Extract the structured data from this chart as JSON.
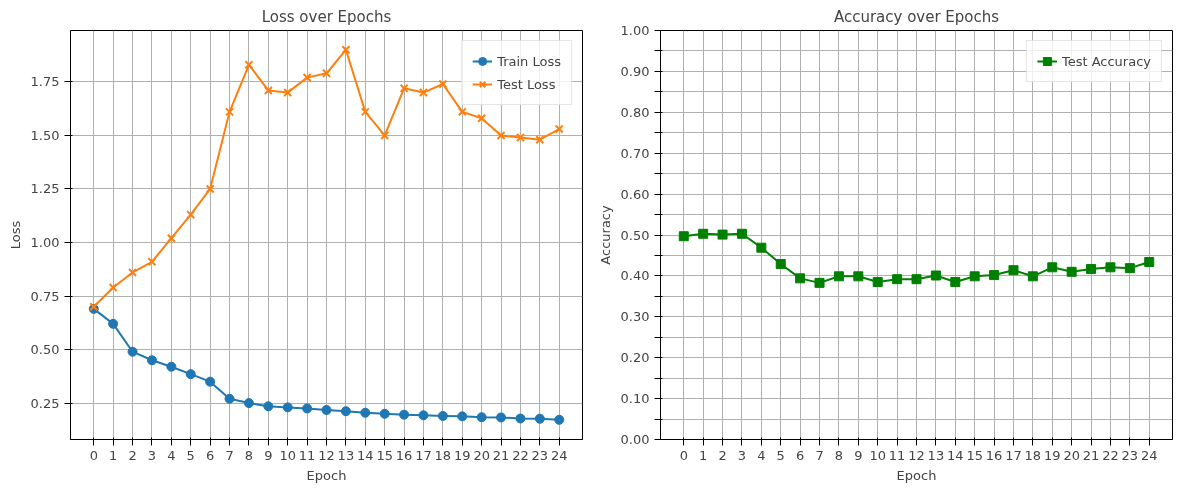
{
  "chart_data": [
    {
      "type": "line",
      "title": "Loss over Epochs",
      "xlabel": "Epoch",
      "ylabel": "Loss",
      "grid": true,
      "legend": "top right",
      "x": [
        0,
        1,
        2,
        3,
        4,
        5,
        6,
        7,
        8,
        9,
        10,
        11,
        12,
        13,
        14,
        15,
        16,
        17,
        18,
        19,
        20,
        21,
        22,
        23,
        24
      ],
      "xlim": [
        -1.2,
        25.2
      ],
      "ylim": [
        0.08,
        1.99
      ],
      "xticks": [
        0,
        1,
        2,
        3,
        4,
        5,
        6,
        7,
        8,
        9,
        10,
        11,
        12,
        13,
        14,
        15,
        16,
        17,
        18,
        19,
        20,
        21,
        22,
        23,
        24
      ],
      "yticks": [
        {
          "value": 0.25,
          "label": "0.25"
        },
        {
          "value": 0.5,
          "label": "0.50"
        },
        {
          "value": 0.75,
          "label": "0.75"
        },
        {
          "value": 1.0,
          "label": "1.00"
        },
        {
          "value": 1.25,
          "label": "1.25"
        },
        {
          "value": 1.5,
          "label": "1.50"
        },
        {
          "value": 1.75,
          "label": "1.75"
        }
      ],
      "series": [
        {
          "name": "Train Loss",
          "color": "#1f77b4",
          "marker": "circle",
          "values": [
            0.69,
            0.62,
            0.49,
            0.45,
            0.42,
            0.385,
            0.35,
            0.27,
            0.25,
            0.235,
            0.23,
            0.225,
            0.218,
            0.212,
            0.205,
            0.2,
            0.196,
            0.193,
            0.19,
            0.188,
            0.184,
            0.183,
            0.178,
            0.177,
            0.172
          ]
        },
        {
          "name": "Test Loss",
          "color": "#ff7f0e",
          "marker": "cross",
          "values": [
            0.7,
            0.79,
            0.86,
            0.91,
            1.02,
            1.13,
            1.25,
            1.61,
            1.83,
            1.71,
            1.7,
            1.77,
            1.79,
            1.9,
            1.61,
            1.5,
            1.72,
            1.7,
            1.74,
            1.61,
            1.58,
            1.5,
            1.49,
            1.48,
            1.53
          ]
        }
      ]
    },
    {
      "type": "line",
      "title": "Accuracy over Epochs",
      "xlabel": "Epoch",
      "ylabel": "Accuracy",
      "grid": true,
      "legend": "top right",
      "x": [
        0,
        1,
        2,
        3,
        4,
        5,
        6,
        7,
        8,
        9,
        10,
        11,
        12,
        13,
        14,
        15,
        16,
        17,
        18,
        19,
        20,
        21,
        22,
        23,
        24
      ],
      "xlim": [
        -1.2,
        25.2
      ],
      "ylim": [
        0,
        1
      ],
      "xticks": [
        0,
        1,
        2,
        3,
        4,
        5,
        6,
        7,
        8,
        9,
        10,
        11,
        12,
        13,
        14,
        15,
        16,
        17,
        18,
        19,
        20,
        21,
        22,
        23,
        24
      ],
      "yticks": [
        {
          "value": 0,
          "label": "0.00"
        },
        {
          "value": 0.05,
          "label": null
        },
        {
          "value": 0.1,
          "label": "0.10"
        },
        {
          "value": 0.15,
          "label": null
        },
        {
          "value": 0.2,
          "label": "0.20"
        },
        {
          "value": 0.25,
          "label": null
        },
        {
          "value": 0.3,
          "label": "0.30"
        },
        {
          "value": 0.35,
          "label": null
        },
        {
          "value": 0.4,
          "label": "0.40"
        },
        {
          "value": 0.45,
          "label": null
        },
        {
          "value": 0.5,
          "label": "0.50"
        },
        {
          "value": 0.55,
          "label": null
        },
        {
          "value": 0.6,
          "label": "0.60"
        },
        {
          "value": 0.65,
          "label": null
        },
        {
          "value": 0.7,
          "label": "0.70"
        },
        {
          "value": 0.75,
          "label": null
        },
        {
          "value": 0.8,
          "label": "0.80"
        },
        {
          "value": 0.85,
          "label": null
        },
        {
          "value": 0.9,
          "label": "0.90"
        },
        {
          "value": 0.95,
          "label": null
        },
        {
          "value": 1.0,
          "label": "1.00"
        }
      ],
      "series": [
        {
          "name": "Test Accuracy",
          "color": "#008000",
          "marker": "square",
          "values": [
            0.497,
            0.503,
            0.501,
            0.503,
            0.469,
            0.429,
            0.394,
            0.383,
            0.399,
            0.399,
            0.385,
            0.392,
            0.392,
            0.401,
            0.385,
            0.399,
            0.402,
            0.414,
            0.399,
            0.421,
            0.41,
            0.417,
            0.421,
            0.419,
            0.434
          ]
        }
      ]
    }
  ]
}
